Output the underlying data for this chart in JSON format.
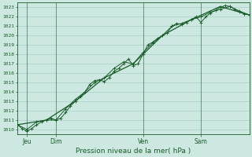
{
  "xlabel": "Pression niveau de la mer( hPa )",
  "ylim": [
    1009.5,
    1023.5
  ],
  "xlim": [
    0,
    48
  ],
  "yticks": [
    1010,
    1011,
    1012,
    1013,
    1014,
    1015,
    1016,
    1017,
    1018,
    1019,
    1020,
    1021,
    1022,
    1023
  ],
  "day_labels": [
    "Jeu",
    "Dim",
    "Ven",
    "Sam"
  ],
  "day_positions": [
    2,
    8,
    26,
    38
  ],
  "background_color": "#cce8e0",
  "grid_color": "#a8d0c8",
  "line_color": "#1a5c2a",
  "series1_x": [
    0,
    1,
    2,
    3,
    4,
    5,
    6,
    7,
    8,
    9,
    10,
    11,
    12,
    13,
    14,
    15,
    16,
    17,
    18,
    19,
    20,
    21,
    22,
    23,
    24,
    25,
    26,
    27,
    28,
    29,
    30,
    31,
    32,
    33,
    34,
    35,
    36,
    37,
    38,
    39,
    40,
    41,
    42,
    43,
    44,
    45,
    46,
    47,
    48
  ],
  "series1_y": [
    1010.5,
    1010.1,
    1009.8,
    1010.1,
    1010.5,
    1010.8,
    1011.0,
    1011.2,
    1011.0,
    1011.2,
    1011.8,
    1012.5,
    1013.0,
    1013.5,
    1014.0,
    1014.8,
    1015.2,
    1015.3,
    1015.1,
    1015.5,
    1016.2,
    1016.5,
    1017.0,
    1017.5,
    1016.8,
    1017.0,
    1018.0,
    1019.0,
    1019.3,
    1019.7,
    1020.0,
    1020.3,
    1021.0,
    1021.3,
    1021.2,
    1021.4,
    1021.7,
    1022.0,
    1021.4,
    1022.0,
    1022.4,
    1022.7,
    1023.0,
    1023.2,
    1023.1,
    1022.8,
    1022.5,
    1022.3,
    1022.2
  ],
  "series2_x": [
    0,
    2,
    4,
    6,
    8,
    10,
    12,
    14,
    16,
    18,
    20,
    22,
    24,
    26,
    28,
    30,
    32,
    34,
    36,
    38,
    40,
    42,
    44,
    46,
    48
  ],
  "series2_y": [
    1010.5,
    1010.0,
    1010.8,
    1011.0,
    1011.0,
    1012.2,
    1013.2,
    1014.0,
    1015.0,
    1015.5,
    1016.5,
    1017.2,
    1017.0,
    1018.2,
    1019.2,
    1020.0,
    1021.0,
    1021.3,
    1021.7,
    1022.0,
    1022.5,
    1022.8,
    1023.1,
    1022.6,
    1022.2
  ],
  "series3_x": [
    0,
    6,
    12,
    18,
    24,
    30,
    36,
    42,
    48
  ],
  "series3_y": [
    1010.5,
    1011.0,
    1013.0,
    1015.5,
    1017.0,
    1020.0,
    1021.7,
    1023.1,
    1022.2
  ]
}
